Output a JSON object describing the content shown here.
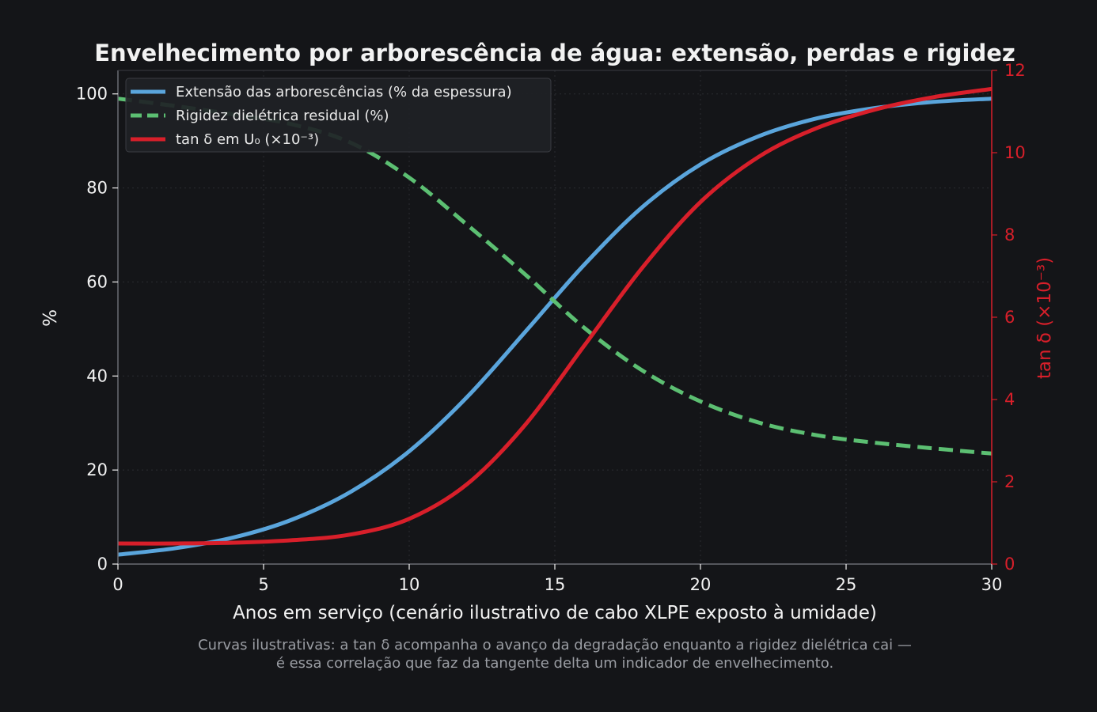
{
  "chart_data": {
    "type": "line",
    "title": "Envelhecimento por arborescência de água: extensão, perdas e rigidez",
    "xlabel": "Anos em serviço (cenário ilustrativo de cabo XLPE exposto à umidade)",
    "ylabel": "%",
    "ylabel_right": "tan δ (×10⁻³)",
    "xlim": [
      0,
      30
    ],
    "ylim": [
      0,
      105
    ],
    "ylim_right": [
      0,
      12
    ],
    "x_ticks": [
      "0",
      "5",
      "10",
      "15",
      "20",
      "25",
      "30"
    ],
    "y_ticks": [
      "0",
      "20",
      "40",
      "60",
      "80",
      "100"
    ],
    "y_ticks_right": [
      "0",
      "2",
      "4",
      "6",
      "8",
      "10",
      "12"
    ],
    "grid": true,
    "legend_position": "top-left",
    "x": [
      0,
      2,
      4,
      6,
      8,
      10,
      12,
      14,
      16,
      18,
      20,
      22,
      24,
      26,
      28,
      30
    ],
    "series": [
      {
        "name": "Extensão das arborescências (% da espessura)",
        "axis": "left",
        "color": "#5aa5dc",
        "style": "solid",
        "values": [
          2.0,
          3.4,
          5.7,
          9.5,
          15.4,
          24.0,
          35.6,
          49.5,
          63.6,
          75.9,
          85.0,
          91.0,
          94.8,
          97.0,
          98.3,
          99.0
        ]
      },
      {
        "name": "Rigidez dielétrica residual (%)",
        "axis": "left",
        "color": "#5cbf72",
        "style": "dashed",
        "values": [
          99,
          97.4,
          95.6,
          93.5,
          89.6,
          82.2,
          72.1,
          61.5,
          50.3,
          41.2,
          34.6,
          30.1,
          27.4,
          25.8,
          24.6,
          23.5
        ]
      },
      {
        "name": "tan δ em U₀ (×10⁻³)",
        "axis": "right",
        "color": "#d81f2a",
        "style": "solid",
        "values": [
          0.5,
          0.5,
          0.52,
          0.58,
          0.72,
          1.1,
          1.95,
          3.4,
          5.3,
          7.2,
          8.8,
          9.9,
          10.6,
          11.05,
          11.35,
          11.55
        ]
      }
    ],
    "caption": [
      "Curvas ilustrativas: a tan δ acompanha o avanço da degradação enquanto a rigidez dielétrica cai —",
      "é essa correlação que faz da tangente delta um indicador de envelhecimento."
    ]
  },
  "colors": {
    "background": "#141518",
    "axis": "#6a6c72",
    "grid": "#2a2c31",
    "text": "#f2f2f2",
    "right_axis": "#d81f2a",
    "legend_bg": "#202226"
  }
}
